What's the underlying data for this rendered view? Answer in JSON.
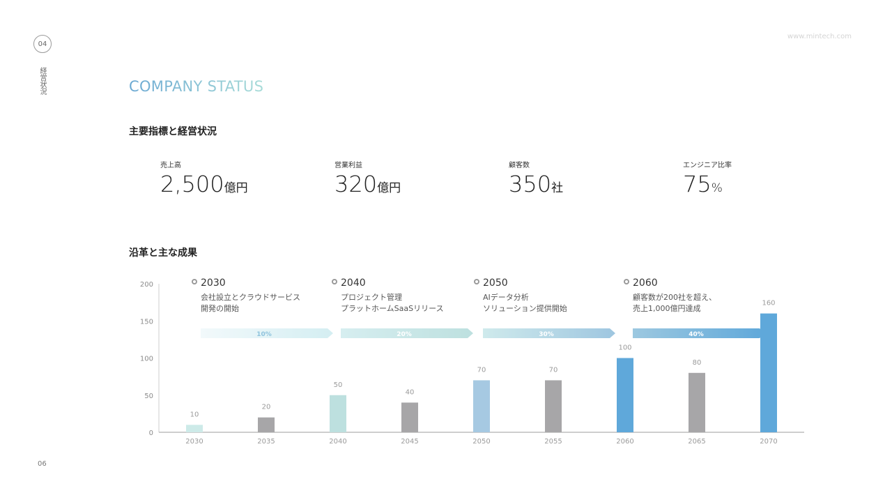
{
  "page": {
    "number_badge": "04",
    "vertical_label": "経営状況",
    "url": "www.mintech.com",
    "footer_page": "06"
  },
  "title": "COMPANY STATUS",
  "section_kpi_title": "主要指標と経営状況",
  "kpis": [
    {
      "label": "売上高",
      "value": "2,500",
      "unit": "億円"
    },
    {
      "label": "営業利益",
      "value": "320",
      "unit": "億円"
    },
    {
      "label": "顧客数",
      "value": "350",
      "unit": "社"
    },
    {
      "label": "エンジニア比率",
      "value": "75",
      "unit": "%"
    }
  ],
  "section_history_title": "沿革と主な成果",
  "timeline": [
    {
      "year": "2030",
      "line1": "会社設立とクラウドサービス",
      "line2": "開発の開始",
      "percent": "10%"
    },
    {
      "year": "2040",
      "line1": "プロジェクト管理",
      "line2": "プラットホームSaaSリリース",
      "percent": "20%"
    },
    {
      "year": "2050",
      "line1": "AIデータ分析",
      "line2": "ソリューション提供開始",
      "percent": "30%"
    },
    {
      "year": "2060",
      "line1": "顧客数が200社を超え、",
      "line2": "売上1,000億円達成",
      "percent": "40%"
    }
  ],
  "chart_data": {
    "type": "bar",
    "categories": [
      "2030",
      "2035",
      "2040",
      "2045",
      "2050",
      "2055",
      "2060",
      "2065",
      "2070"
    ],
    "values": [
      10,
      20,
      50,
      40,
      70,
      70,
      100,
      80,
      160
    ],
    "ylim": [
      0,
      200
    ],
    "yticks": [
      0,
      50,
      100,
      150,
      200
    ],
    "bar_colors": [
      "#cdeae8",
      "#a7a6a8",
      "#bde0df",
      "#a7a6a8",
      "#a6c9e2",
      "#a7a6a8",
      "#5fa8da",
      "#a7a6a8",
      "#5fa8da"
    ],
    "grid": false
  },
  "colors": {
    "accent_blue": "#5fa8da",
    "accent_teal": "#bde0df",
    "gray_bar": "#a7a6a8"
  }
}
